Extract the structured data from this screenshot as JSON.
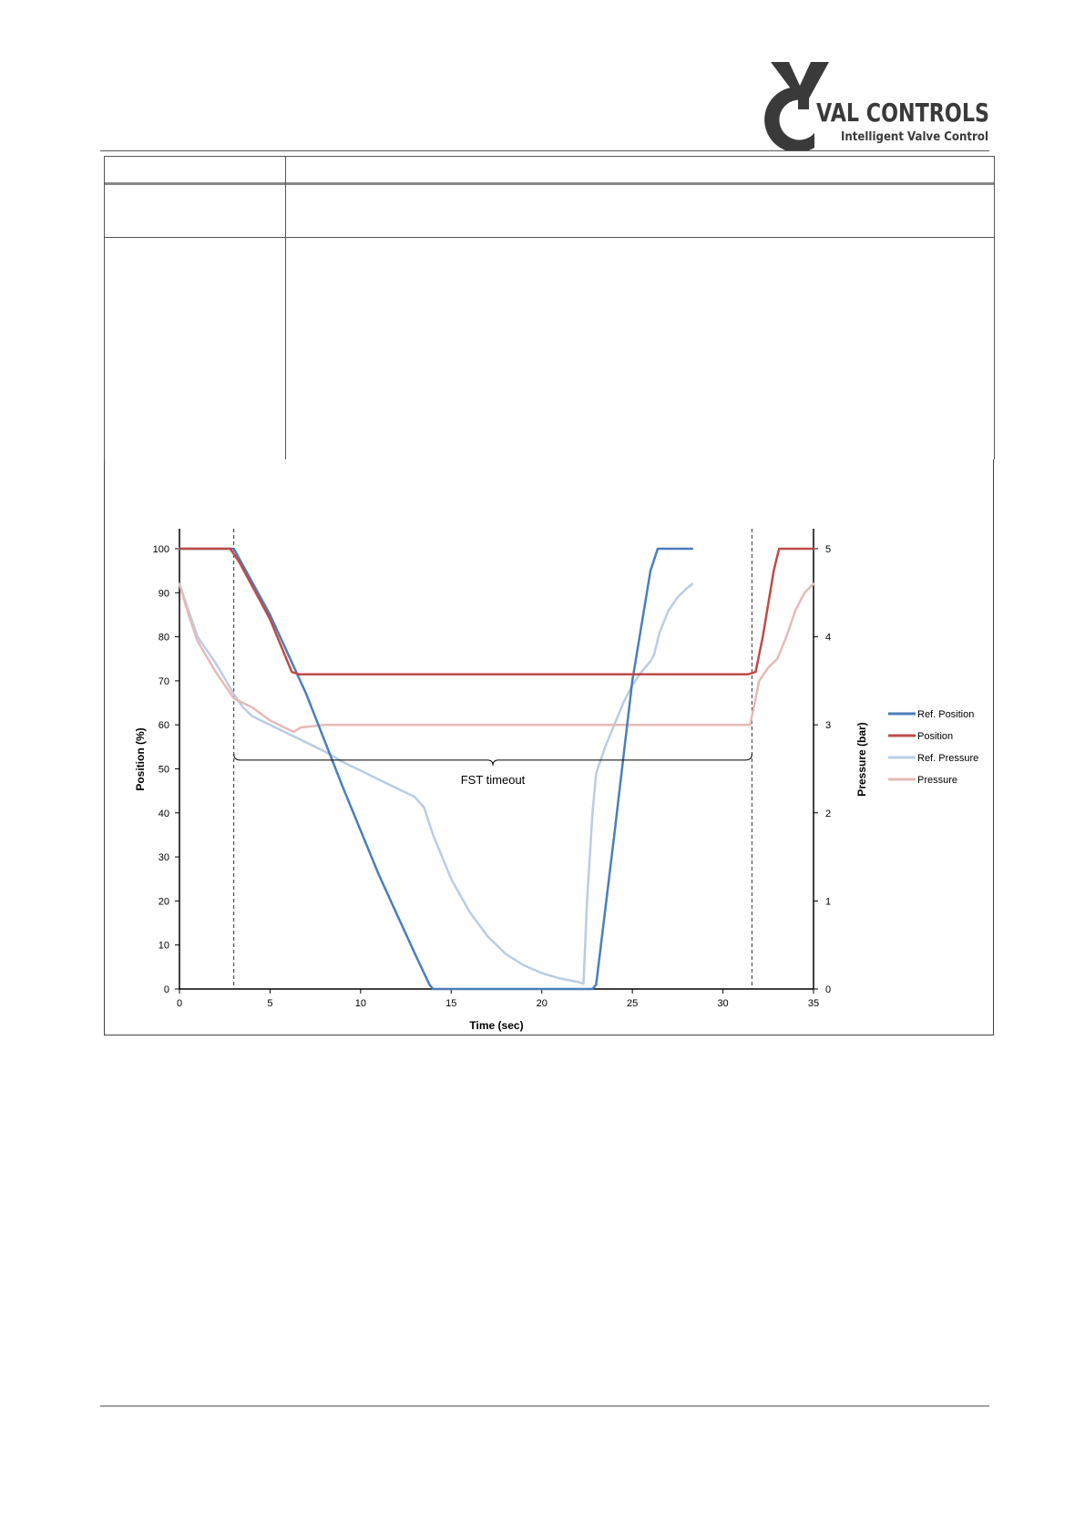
{
  "logo": {
    "brand_text": "VAL CONTROLS",
    "tagline": "Intelligent Valve Control",
    "brand_color": "#3a3a3a"
  },
  "chart_data": {
    "type": "line",
    "xlabel": "Time (sec)",
    "ylabel": "Position (%)",
    "y2label": "Pressure (bar)",
    "xlim": [
      0,
      35
    ],
    "ylim": [
      0,
      100
    ],
    "y2lim": [
      0,
      5
    ],
    "xticks": [
      0,
      5,
      10,
      15,
      20,
      25,
      30,
      35
    ],
    "yticks": [
      0,
      10,
      20,
      30,
      40,
      50,
      60,
      70,
      80,
      90,
      100
    ],
    "y2ticks": [
      0,
      1,
      2,
      3,
      4,
      5
    ],
    "legend_position": "right",
    "vlines": [
      3,
      31.6
    ],
    "annotation": {
      "text": "FST timeout",
      "from_x": 3,
      "to_x": 31.6,
      "y": 52
    },
    "series": [
      {
        "name": "Ref. Position",
        "axis": "left",
        "color": "#4a7ebb",
        "x": [
          0,
          3,
          5,
          7,
          9,
          11,
          13,
          13.8,
          14,
          22.8,
          23,
          24,
          25,
          26,
          26.4,
          28.3
        ],
        "y": [
          100,
          100,
          85,
          67,
          46,
          26,
          8,
          1,
          0,
          0,
          1,
          35,
          70,
          95,
          100,
          100
        ]
      },
      {
        "name": "Position",
        "axis": "left",
        "color": "#be4b48",
        "x": [
          0,
          2.8,
          3.3,
          5,
          6.2,
          6.6,
          31.4,
          31.8,
          32.2,
          32.8,
          33.1,
          35
        ],
        "y": [
          100,
          100,
          97,
          84,
          72,
          71.5,
          71.5,
          72,
          80,
          95,
          100,
          100
        ]
      },
      {
        "name": "Ref. Pressure",
        "axis": "right",
        "color": "#b9cde5",
        "x": [
          0,
          0.5,
          1,
          2,
          3,
          3.5,
          4,
          5,
          6,
          7,
          8,
          9,
          10,
          11,
          12,
          13,
          13.5,
          14,
          15,
          16,
          17,
          18,
          19,
          20,
          21,
          22,
          22.3,
          22.5,
          22.8,
          23,
          23.5,
          24,
          24.5,
          25,
          25.5,
          26,
          26.2,
          26.5,
          27,
          27.5,
          28,
          28.3
        ],
        "y": [
          4.6,
          4.3,
          4.0,
          3.7,
          3.35,
          3.2,
          3.1,
          3.0,
          2.9,
          2.8,
          2.7,
          2.58,
          2.48,
          2.38,
          2.28,
          2.18,
          2.06,
          1.75,
          1.25,
          0.88,
          0.6,
          0.4,
          0.27,
          0.18,
          0.12,
          0.08,
          0.06,
          1.0,
          2.0,
          2.45,
          2.75,
          3.0,
          3.25,
          3.45,
          3.6,
          3.72,
          3.8,
          4.05,
          4.3,
          4.45,
          4.55,
          4.6
        ]
      },
      {
        "name": "Pressure",
        "axis": "right",
        "color": "#e6b9b8",
        "x": [
          0,
          0.5,
          1,
          2,
          3,
          3.5,
          4,
          5,
          6,
          6.3,
          6.7,
          8,
          10,
          15,
          20,
          25,
          30,
          31.5,
          31.8,
          32,
          32.5,
          33,
          33.5,
          34,
          34.5,
          35
        ],
        "y": [
          4.6,
          4.25,
          3.95,
          3.6,
          3.3,
          3.25,
          3.2,
          3.05,
          2.95,
          2.92,
          2.97,
          3.0,
          3.0,
          3.0,
          3.0,
          3.0,
          3.0,
          3.0,
          3.3,
          3.5,
          3.65,
          3.75,
          4.0,
          4.3,
          4.5,
          4.6
        ]
      }
    ]
  }
}
